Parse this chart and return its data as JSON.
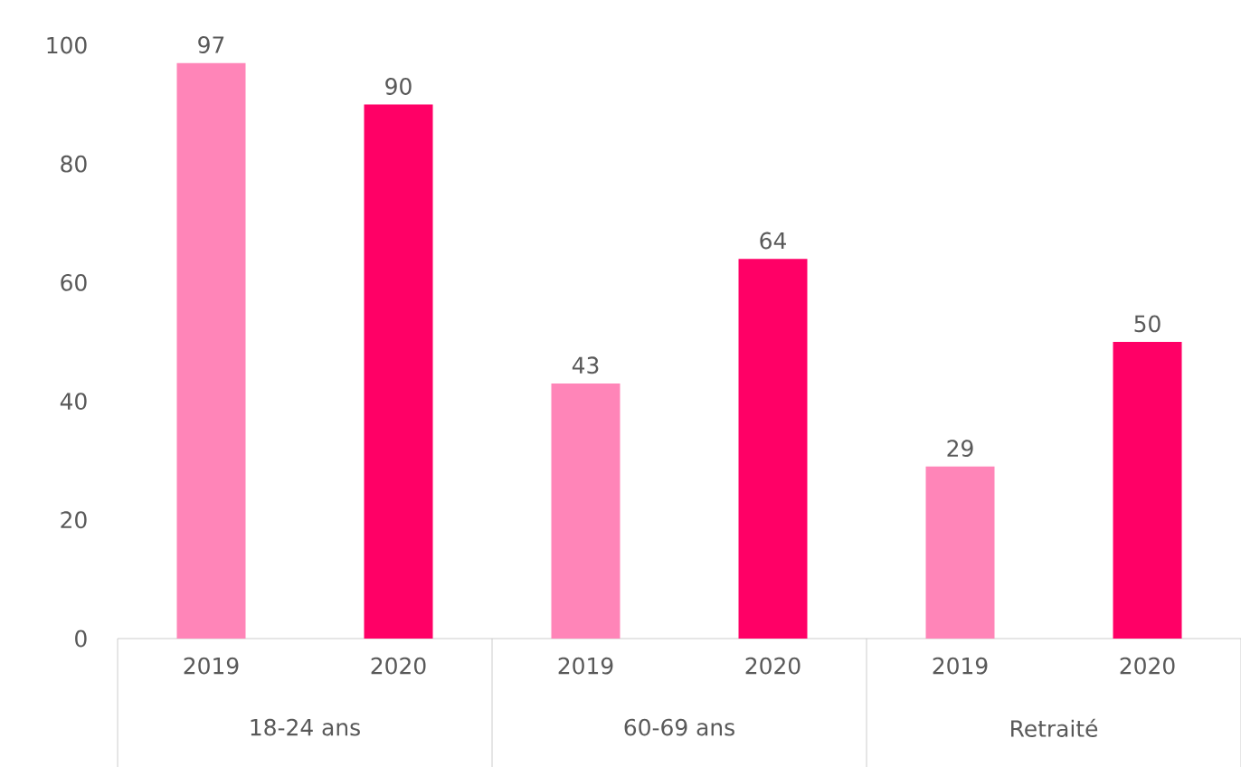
{
  "chart_data": {
    "type": "bar",
    "categories": [
      "18-24 ans",
      "60-69 ans",
      "Retraité"
    ],
    "series": [
      {
        "name": "2019",
        "color": "#ff85b8",
        "values": [
          97,
          43,
          29
        ]
      },
      {
        "name": "2020",
        "color": "#ff0066",
        "values": [
          90,
          64,
          50
        ]
      }
    ],
    "ylim": [
      0,
      100
    ],
    "yticks": [
      0,
      20,
      40,
      60,
      80,
      100
    ],
    "data_labels": true,
    "grid": false
  }
}
